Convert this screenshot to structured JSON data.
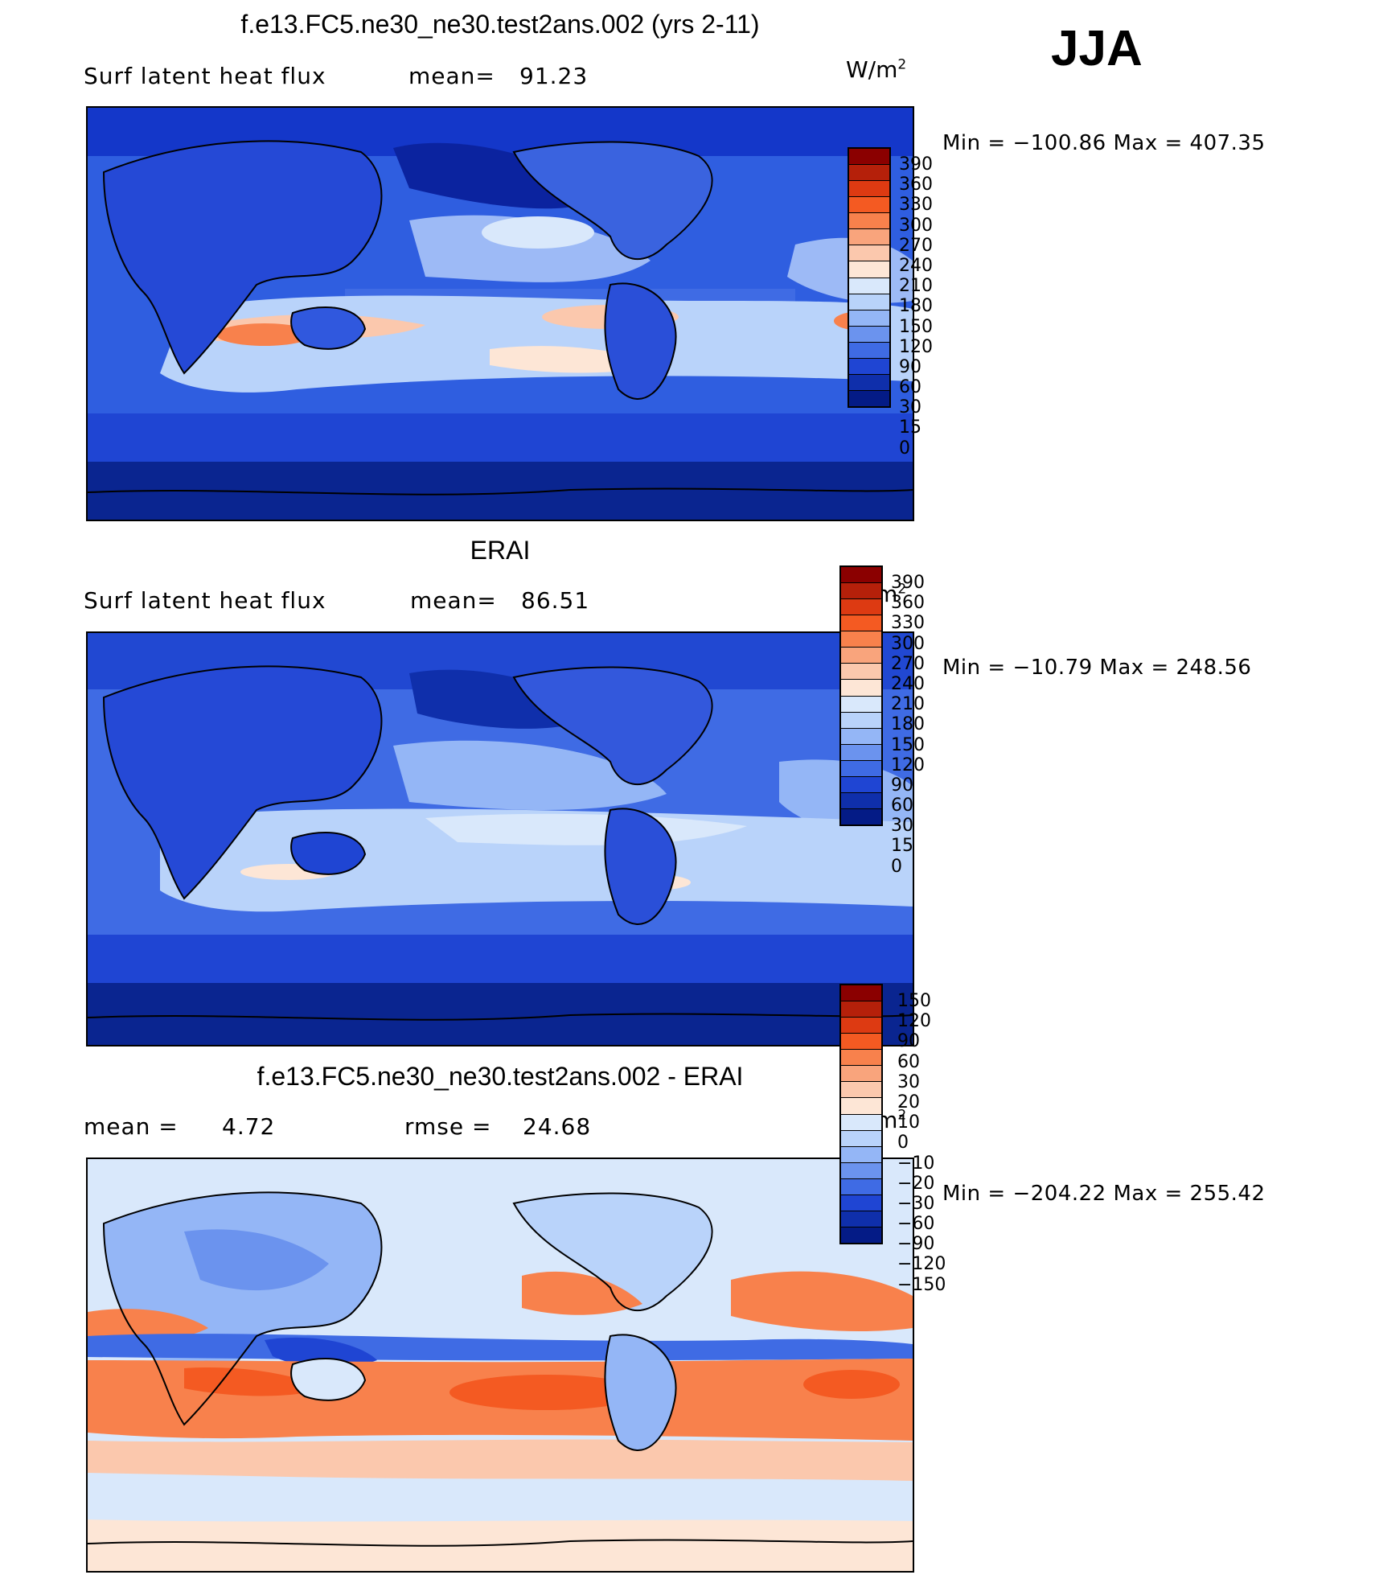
{
  "season": "JJA",
  "panels": [
    {
      "id": "model",
      "title": "f.e13.FC5.ne30_ne30.test2ans.002 (yrs 2-11)",
      "left_label": "Surf latent heat flux",
      "mid_label": "mean=",
      "mid_value": "91.23",
      "units_base": "W/m",
      "units_exp": "2",
      "minmax": "Min = −100.86 Max = 407.35",
      "min": -100.86,
      "max": 407.35,
      "mean": 91.23
    },
    {
      "id": "obs",
      "title": "ERAI",
      "left_label": "Surf latent heat flux",
      "mid_label": "mean=",
      "mid_value": "86.51",
      "units_base": "W/m",
      "units_exp": "2",
      "minmax": "Min = −10.79 Max = 248.56",
      "min": -10.79,
      "max": 248.56,
      "mean": 86.51
    },
    {
      "id": "diff",
      "title": "f.e13.FC5.ne30_ne30.test2ans.002 - ERAI",
      "left_label": "mean =",
      "left_value": "4.72",
      "mid_label": "rmse =",
      "mid_value": "24.68",
      "units_base": "W/m",
      "units_exp": "2",
      "minmax": "Min = −204.22 Max = 255.42",
      "min": -204.22,
      "max": 255.42,
      "mean": 4.72,
      "rmse": 24.68
    }
  ],
  "colorbars": {
    "absolute": {
      "labels": [
        "390",
        "360",
        "330",
        "300",
        "270",
        "240",
        "210",
        "180",
        "150",
        "120",
        "90",
        "60",
        "30",
        "15",
        "0"
      ],
      "colors": [
        "#8b0000",
        "#b5200a",
        "#dd3a12",
        "#f45a22",
        "#f8814c",
        "#f9a47c",
        "#fbc8ad",
        "#fde6d6",
        "#d9e8fb",
        "#b9d3fa",
        "#94b6f6",
        "#6b93ee",
        "#3f6be4",
        "#1f45d3",
        "#0f2fab",
        "#041b86"
      ]
    },
    "difference": {
      "labels": [
        "150",
        "120",
        "90",
        "60",
        "30",
        "20",
        "10",
        "0",
        "−10",
        "−20",
        "−30",
        "−60",
        "−90",
        "−120",
        "−150"
      ],
      "colors": [
        "#8b0000",
        "#b5200a",
        "#dd3a12",
        "#f45a22",
        "#f8814c",
        "#f9a47c",
        "#fbc8ad",
        "#fde6d6",
        "#d9e8fb",
        "#b9d3fa",
        "#94b6f6",
        "#6b93ee",
        "#3f6be4",
        "#1f45d3",
        "#0f2fab",
        "#041b86"
      ]
    }
  }
}
